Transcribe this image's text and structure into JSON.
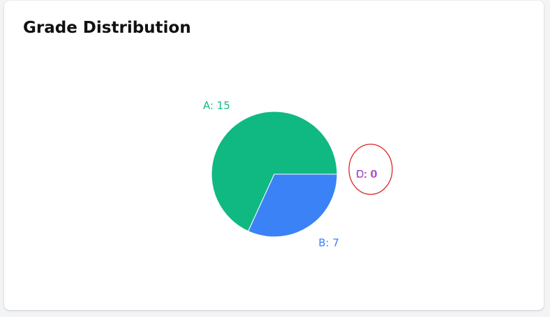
{
  "card": {
    "title": "Grade Distribution"
  },
  "chart_data": {
    "type": "pie",
    "title": "Grade Distribution",
    "categories": [
      "A",
      "B",
      "C",
      "D"
    ],
    "values": [
      15,
      7,
      0,
      0
    ],
    "labels": [
      "A: 15",
      "B: 7",
      "C: 0",
      "D: 0"
    ],
    "colors": [
      "#10b981",
      "#3b82f6",
      "#f59e0b",
      "#8b5cf6"
    ],
    "label_colors": [
      "#10b981",
      "#3b82f6",
      "#ef4444",
      "#8b5cf6"
    ],
    "slice_border": "#ffffff",
    "annotation": {
      "type": "circle",
      "target": "overlapping zero-value labels C and D",
      "color": "#dc2626"
    }
  }
}
